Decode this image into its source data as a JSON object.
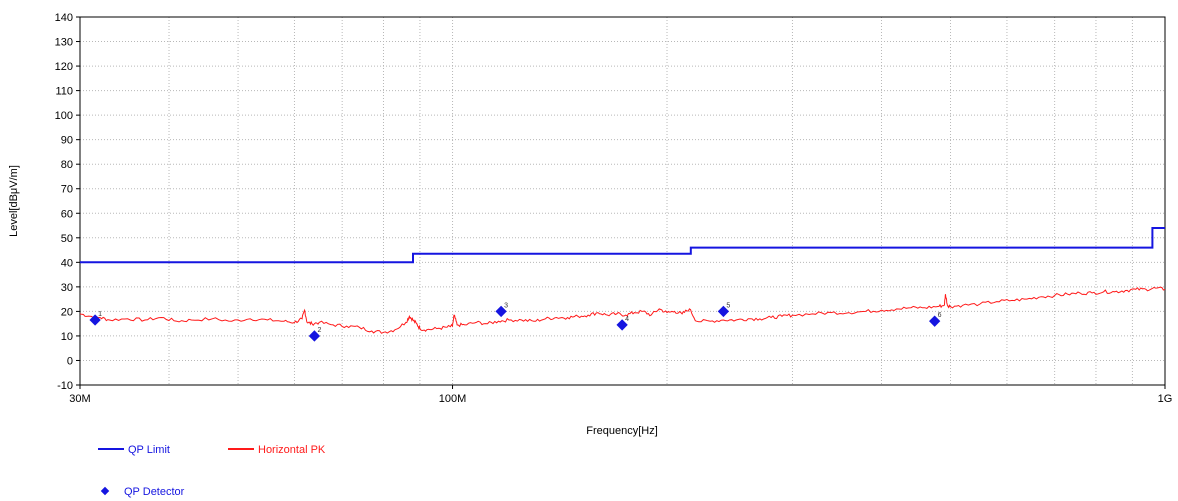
{
  "chart_data": {
    "type": "line",
    "xscale": "log",
    "xlim": [
      30000000,
      1000000000
    ],
    "ylim": [
      -10,
      140
    ],
    "yticks": [
      140,
      130,
      120,
      110,
      100,
      90,
      80,
      70,
      60,
      50,
      40,
      30,
      20,
      10,
      0,
      -10
    ],
    "yticklabels": [
      "140",
      "130",
      "120",
      "110",
      "100",
      "90",
      "80",
      "70",
      "60",
      "50",
      "40",
      "30",
      "20",
      "10",
      "0",
      "-10"
    ],
    "xticklabels": [
      {
        "value": 30000000,
        "label": "30M"
      },
      {
        "value": 100000000,
        "label": "100M"
      },
      {
        "value": 1000000000,
        "label": "1G"
      }
    ],
    "xlabel": "Frequency[Hz]",
    "ylabel": "Level[dBμV/m]",
    "grid": true,
    "legend_position": "bottom-left",
    "series": [
      {
        "name": "QP Limit",
        "color": "#1515e0",
        "kind": "step",
        "x": [
          30000000,
          88000000,
          88000000,
          216000000,
          216000000,
          960000000,
          960000000,
          1000000000
        ],
        "y": [
          40,
          40,
          43.5,
          43.5,
          46,
          46,
          54,
          54
        ]
      },
      {
        "name": "Horizontal PK",
        "color": "#ff1a1a",
        "kind": "line",
        "x": [
          30000000,
          31000000,
          32000000,
          33000000,
          35000000,
          37000000,
          39000000,
          41000000,
          43000000,
          46000000,
          49000000,
          52000000,
          55000000,
          58000000,
          60000000,
          61500000,
          62000000,
          62500000,
          63500000,
          65000000,
          68000000,
          71000000,
          74000000,
          77000000,
          80000000,
          83000000,
          86000000,
          87000000,
          88000000,
          89000000,
          90000000,
          92000000,
          95000000,
          98000000,
          100000000,
          100500000,
          101500000,
          104000000,
          108000000,
          112000000,
          116000000,
          120000000,
          125000000,
          130000000,
          135000000,
          140000000,
          145000000,
          150000000,
          155000000,
          160000000,
          165000000,
          170000000,
          175000000,
          180000000,
          185000000,
          190000000,
          195000000,
          200000000,
          205000000,
          210000000,
          215000000,
          220000000,
          230000000,
          240000000,
          250000000,
          260000000,
          270000000,
          280000000,
          290000000,
          300000000,
          320000000,
          340000000,
          360000000,
          380000000,
          400000000,
          420000000,
          440000000,
          460000000,
          480000000,
          490000000,
          492000000,
          495000000,
          500000000,
          520000000,
          550000000,
          580000000,
          610000000,
          640000000,
          670000000,
          700000000,
          730000000,
          760000000,
          790000000,
          820000000,
          850000000,
          880000000,
          910000000,
          940000000,
          970000000,
          1000000000
        ],
        "y": [
          19,
          18,
          17.5,
          16.5,
          17,
          16.5,
          17.5,
          16,
          16.5,
          17,
          16,
          17,
          16.5,
          16,
          15.5,
          17,
          20.5,
          15.5,
          15,
          15.5,
          14.5,
          14,
          13.5,
          12,
          11.5,
          12.5,
          15.5,
          18,
          16.5,
          15,
          13,
          12.5,
          13,
          13.5,
          14,
          18.5,
          14.5,
          14.5,
          15.5,
          15,
          16,
          16.5,
          16.5,
          16,
          17,
          17.5,
          17.5,
          18,
          18.5,
          19.5,
          18.5,
          19,
          18.5,
          19.5,
          20,
          18.5,
          21,
          19.5,
          20,
          19,
          21,
          16,
          16,
          16.5,
          16.5,
          17,
          17,
          17.5,
          18,
          18.5,
          19,
          19.5,
          19.5,
          20,
          20.5,
          21,
          21.5,
          21.5,
          22,
          22.5,
          27,
          22.5,
          22,
          22.5,
          23,
          24,
          24.5,
          25,
          26,
          26.5,
          27,
          27.5,
          27.5,
          28,
          28,
          28.5,
          29,
          29,
          29.5,
          29
        ]
      }
    ],
    "detector": {
      "name": "QP Detector",
      "color": "#1515e0",
      "points": [
        {
          "x": 31500000,
          "y": 16.5,
          "label": "1"
        },
        {
          "x": 64000000,
          "y": 10,
          "label": "2"
        },
        {
          "x": 117000000,
          "y": 20,
          "label": "3"
        },
        {
          "x": 173000000,
          "y": 14.5,
          "label": "4"
        },
        {
          "x": 240000000,
          "y": 20,
          "label": "5"
        },
        {
          "x": 475000000,
          "y": 16,
          "label": "6"
        }
      ]
    }
  }
}
